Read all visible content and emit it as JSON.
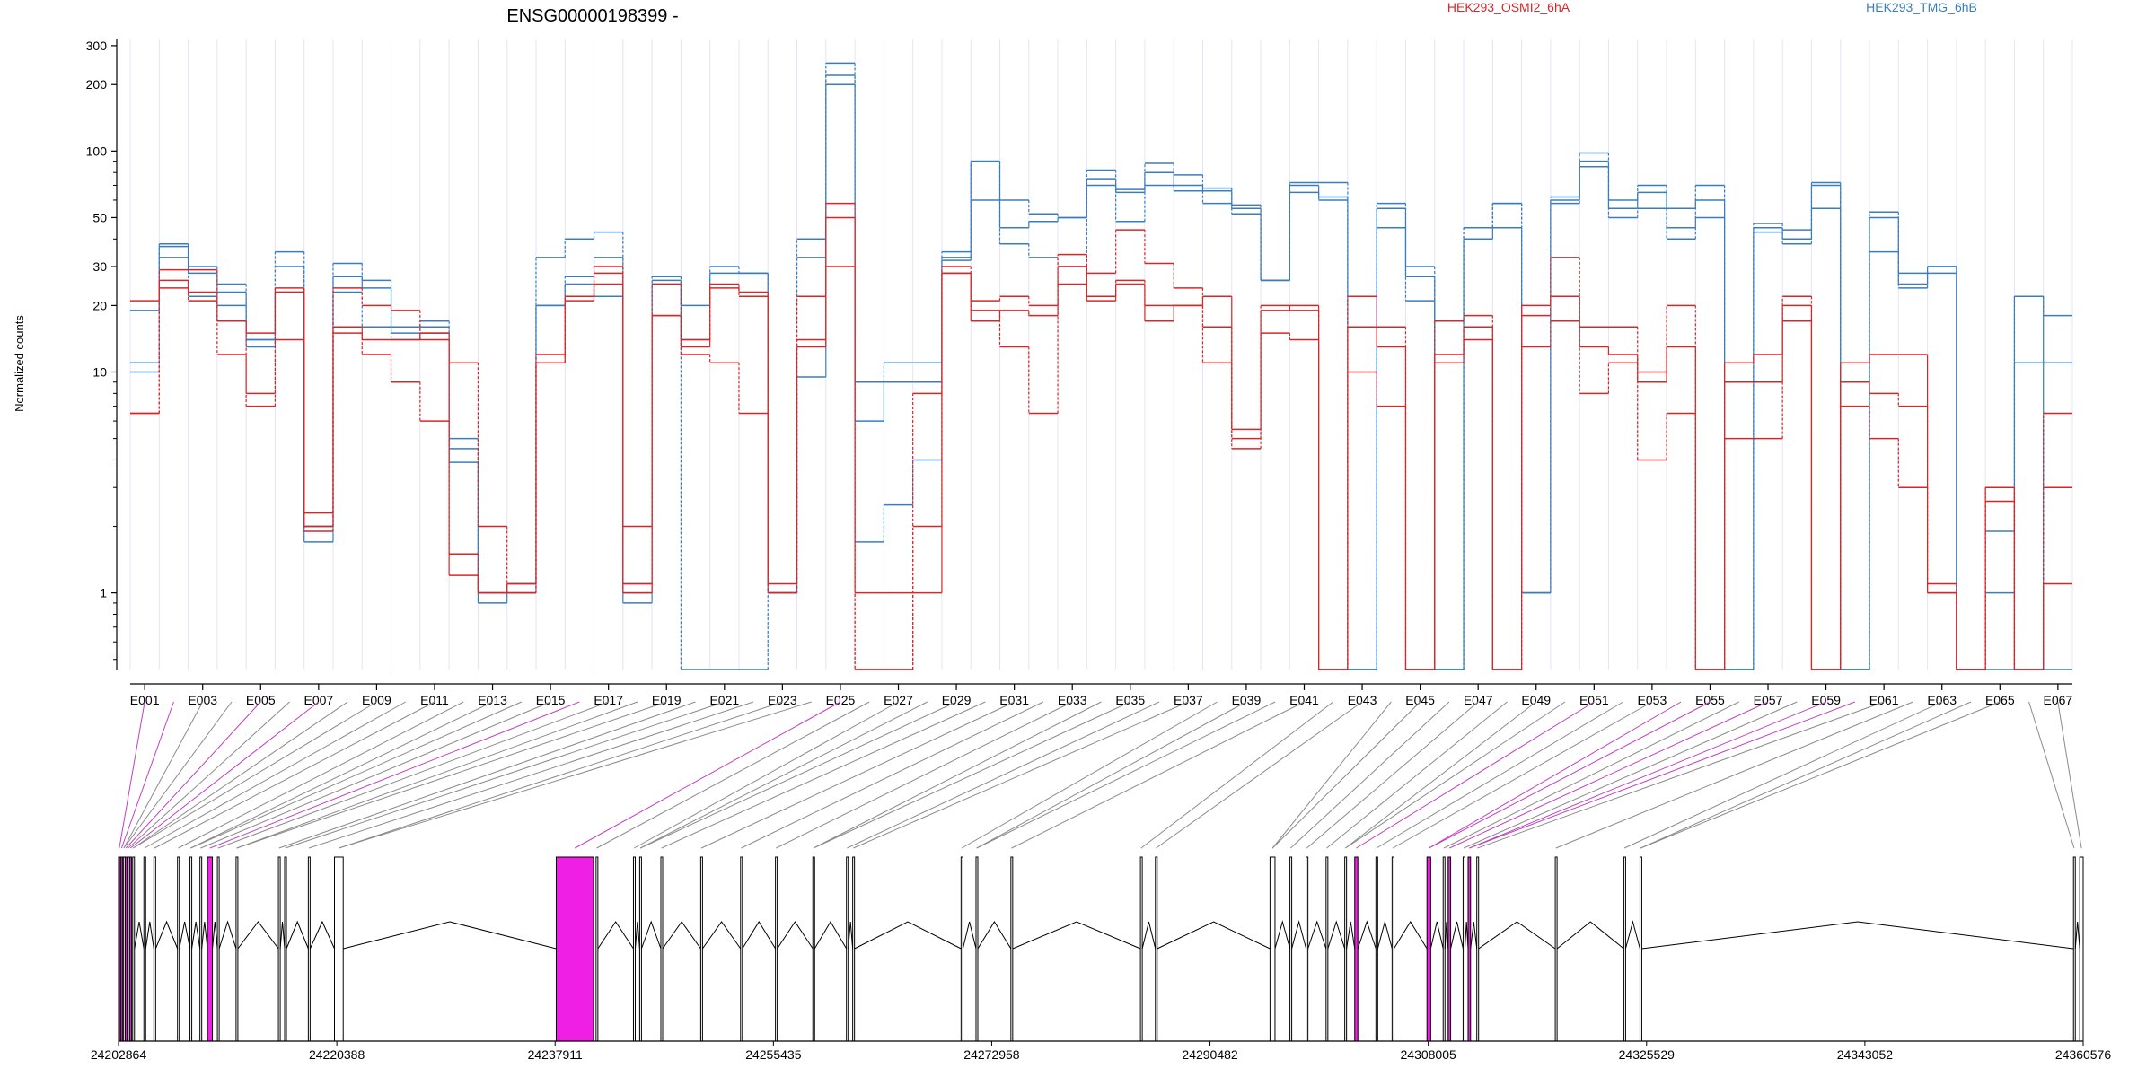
{
  "chart_data": {
    "type": "line",
    "title": "ENSG00000198399 -",
    "ylabel": "Normalized counts",
    "yscale": "log",
    "ylim": [
      0.45,
      320
    ],
    "yticks": [
      1,
      10,
      20,
      30,
      50,
      100,
      200,
      300
    ],
    "legend": [
      {
        "label": "HEK293_OSMI2_6hA",
        "color": "#d62728"
      },
      {
        "label": "HEK293_TMG_6hB",
        "color": "#3a7dbf"
      }
    ],
    "exons": [
      "E001",
      "E002",
      "E003",
      "E004",
      "E005",
      "E006",
      "E007",
      "E008",
      "E009",
      "E010",
      "E011",
      "E012",
      "E013",
      "E014",
      "E015",
      "E016",
      "E017",
      "E018",
      "E019",
      "E020",
      "E021",
      "E022",
      "E023",
      "E024",
      "E025",
      "E026",
      "E027",
      "E028",
      "E029",
      "E030",
      "E031",
      "E032",
      "E033",
      "E034",
      "E035",
      "E036",
      "E037",
      "E038",
      "E039",
      "E040",
      "E041",
      "E042",
      "E043",
      "E044",
      "E045",
      "E046",
      "E047",
      "E048",
      "E049",
      "E050",
      "E051",
      "E052",
      "E053",
      "E054",
      "E055",
      "E056",
      "E057",
      "E058",
      "E059",
      "E060",
      "E061",
      "E062",
      "E063",
      "E064",
      "E065",
      "E066",
      "E067"
    ],
    "exon_tick_labels": [
      "E001",
      "E003",
      "E005",
      "E007",
      "E009",
      "E011",
      "E013",
      "E015",
      "E017",
      "E019",
      "E021",
      "E023",
      "E025",
      "E027",
      "E029",
      "E031",
      "E033",
      "E035",
      "E037",
      "E039",
      "E041",
      "E043",
      "E045",
      "E047",
      "E049",
      "E051",
      "E053",
      "E055",
      "E057",
      "E059",
      "E061",
      "E063",
      "E065",
      "E067"
    ],
    "series": [
      {
        "name": "HEK293_TMG_6hB",
        "color": "#3a7dbf",
        "dashed": false,
        "values": [
          19,
          38,
          28,
          23,
          13,
          23,
          1.7,
          27,
          24,
          15,
          15,
          3.9,
          0.9,
          1.0,
          20,
          25,
          22,
          0.9,
          25,
          20,
          28,
          28,
          1.0,
          9.5,
          200,
          6,
          9,
          9,
          32,
          90,
          45,
          48,
          50,
          75,
          65,
          80,
          70,
          66,
          55,
          26,
          70,
          62,
          0.45,
          55,
          27,
          0.45,
          40,
          45,
          1.0,
          60,
          90,
          55,
          65,
          55,
          60,
          0.45,
          45,
          40,
          70,
          0.45,
          50,
          25,
          30,
          0.45,
          0.45,
          22,
          0.45
        ]
      },
      {
        "name": "HEK293_TMG_6hB",
        "color": "#3a7dbf",
        "dashed": true,
        "values": [
          11,
          37,
          30,
          25,
          14,
          35,
          2.0,
          31,
          26,
          16,
          17,
          5,
          1.0,
          1.1,
          33,
          40,
          43,
          1.1,
          27,
          14,
          30,
          28,
          1.0,
          40,
          250,
          1.7,
          2.5,
          4,
          35,
          90,
          38,
          33,
          30,
          82,
          67,
          88,
          78,
          68,
          57,
          26,
          72,
          72,
          0.45,
          58,
          30,
          0.45,
          45,
          58,
          1.0,
          62,
          98,
          60,
          70,
          45,
          70,
          0.45,
          47,
          44,
          72,
          0.45,
          53,
          28,
          30,
          0.45,
          1.9,
          22,
          18
        ]
      },
      {
        "name": "HEK293_TMG_6hB",
        "color": "#3a7dbf",
        "dashed": true,
        "values": [
          10,
          33,
          22,
          20,
          14,
          30,
          2.0,
          23,
          16,
          14,
          16,
          4.5,
          1.0,
          1.1,
          20,
          27,
          33,
          1.0,
          26,
          0.45,
          0.45,
          0.45,
          1.0,
          33,
          220,
          9,
          11,
          11,
          33,
          60,
          60,
          52,
          50,
          70,
          48,
          70,
          66,
          58,
          52,
          26,
          65,
          60,
          0.45,
          45,
          21,
          0.45,
          45,
          58,
          1.0,
          58,
          85,
          50,
          55,
          40,
          50,
          0.45,
          43,
          38,
          55,
          0.45,
          35,
          24,
          28,
          0.45,
          1.0,
          11,
          11
        ]
      },
      {
        "name": "HEK293_OSMI2_6hA",
        "color": "#d62728",
        "dashed": false,
        "values": [
          21,
          26,
          23,
          17,
          15,
          24,
          2.0,
          16,
          14,
          14,
          15,
          1.2,
          1.0,
          1.1,
          11,
          21,
          25,
          1.0,
          18,
          13,
          25,
          23,
          1.1,
          13,
          50,
          1.0,
          1.0,
          1.0,
          28,
          17,
          19,
          18,
          30,
          21,
          25,
          17,
          20,
          22,
          5.5,
          19,
          20,
          0.45,
          16,
          13,
          0.45,
          12,
          16,
          0.45,
          20,
          22,
          13,
          12,
          9,
          13,
          0.45,
          11,
          12,
          20,
          0.45,
          11,
          12,
          12,
          1.0,
          0.45,
          3.0,
          0.45,
          1.1
        ]
      },
      {
        "name": "HEK293_OSMI2_6hA",
        "color": "#d62728",
        "dashed": true,
        "values": [
          6.5,
          29,
          29,
          17,
          8,
          23,
          1.9,
          24,
          20,
          19,
          14,
          11,
          2.0,
          1.0,
          12,
          22,
          30,
          2.0,
          25,
          14,
          24,
          22,
          1.0,
          14,
          58,
          0.45,
          0.45,
          8,
          30,
          21,
          22,
          20,
          34,
          28,
          44,
          31,
          24,
          16,
          5,
          20,
          19,
          0.45,
          22,
          16,
          0.45,
          17,
          18,
          0.45,
          18,
          33,
          16,
          16,
          10,
          20,
          0.45,
          9,
          9,
          22,
          0.45,
          9,
          8,
          7,
          1.1,
          0.45,
          2.6,
          0.45,
          6.5
        ]
      },
      {
        "name": "HEK293_OSMI2_6hA",
        "color": "#d62728",
        "dashed": true,
        "values": [
          6.5,
          24,
          21,
          12,
          7,
          14,
          2.3,
          15,
          12,
          9,
          6,
          1.5,
          1.0,
          1.0,
          11,
          22,
          28,
          1.1,
          18,
          12,
          11,
          6.5,
          1.0,
          22,
          30,
          0.45,
          0.45,
          2.0,
          28,
          19,
          13,
          6.5,
          25,
          22,
          26,
          20,
          20,
          11,
          4.5,
          15,
          14,
          0.45,
          10,
          7,
          0.45,
          11,
          14,
          0.45,
          13,
          17,
          8,
          11,
          4,
          6.5,
          0.45,
          5,
          5,
          17,
          0.45,
          7,
          5,
          3,
          1.0,
          0.45,
          3.0,
          0.45,
          3.0
        ]
      }
    ],
    "genome_axis": {
      "ticks": [
        "24202864",
        "24220388",
        "24237911",
        "24255435",
        "24272958",
        "24290482",
        "24308005",
        "24325529",
        "24343052",
        "24360576"
      ],
      "start": 24202864,
      "end": 24360576,
      "exons": [
        {
          "start": 24202864,
          "end": 24202990,
          "highlight": true
        },
        {
          "start": 24203060,
          "end": 24203160,
          "highlight": true
        },
        {
          "start": 24203250,
          "end": 24203330,
          "highlight": false
        },
        {
          "start": 24203400,
          "end": 24203520,
          "highlight": true
        },
        {
          "start": 24203600,
          "end": 24203680,
          "highlight": false
        },
        {
          "start": 24203760,
          "end": 24203880,
          "highlight": true
        },
        {
          "start": 24204000,
          "end": 24204080,
          "highlight": false
        },
        {
          "start": 24204900,
          "end": 24204990,
          "highlight": false
        },
        {
          "start": 24205700,
          "end": 24205800,
          "highlight": false
        },
        {
          "start": 24207600,
          "end": 24207700,
          "highlight": false
        },
        {
          "start": 24208600,
          "end": 24208700,
          "highlight": false
        },
        {
          "start": 24209400,
          "end": 24209500,
          "highlight": false
        },
        {
          "start": 24210000,
          "end": 24210400,
          "highlight": true
        },
        {
          "start": 24210800,
          "end": 24210900,
          "highlight": false
        },
        {
          "start": 24212300,
          "end": 24212400,
          "highlight": false
        },
        {
          "start": 24215700,
          "end": 24215800,
          "highlight": false
        },
        {
          "start": 24216200,
          "end": 24216300,
          "highlight": false
        },
        {
          "start": 24218100,
          "end": 24218200,
          "highlight": false
        },
        {
          "start": 24220200,
          "end": 24220900,
          "highlight": false
        },
        {
          "start": 24238000,
          "end": 24241000,
          "highlight": true
        },
        {
          "start": 24241200,
          "end": 24241300,
          "highlight": false
        },
        {
          "start": 24244200,
          "end": 24244300,
          "highlight": false
        },
        {
          "start": 24244700,
          "end": 24244800,
          "highlight": false
        },
        {
          "start": 24246400,
          "end": 24246500,
          "highlight": false
        },
        {
          "start": 24249600,
          "end": 24249700,
          "highlight": false
        },
        {
          "start": 24252800,
          "end": 24252900,
          "highlight": false
        },
        {
          "start": 24255600,
          "end": 24255700,
          "highlight": false
        },
        {
          "start": 24258600,
          "end": 24258700,
          "highlight": false
        },
        {
          "start": 24261300,
          "end": 24261400,
          "highlight": false
        },
        {
          "start": 24261800,
          "end": 24261900,
          "highlight": false
        },
        {
          "start": 24270500,
          "end": 24270600,
          "highlight": false
        },
        {
          "start": 24271700,
          "end": 24271800,
          "highlight": false
        },
        {
          "start": 24274500,
          "end": 24274600,
          "highlight": false
        },
        {
          "start": 24284900,
          "end": 24285000,
          "highlight": false
        },
        {
          "start": 24286100,
          "end": 24286200,
          "highlight": false
        },
        {
          "start": 24295300,
          "end": 24295700,
          "highlight": false
        },
        {
          "start": 24296900,
          "end": 24297000,
          "highlight": false
        },
        {
          "start": 24298200,
          "end": 24298300,
          "highlight": false
        },
        {
          "start": 24299800,
          "end": 24299900,
          "highlight": false
        },
        {
          "start": 24301300,
          "end": 24301400,
          "highlight": false
        },
        {
          "start": 24302100,
          "end": 24302350,
          "highlight": true
        },
        {
          "start": 24303800,
          "end": 24303900,
          "highlight": false
        },
        {
          "start": 24305100,
          "end": 24305200,
          "highlight": false
        },
        {
          "start": 24307900,
          "end": 24308200,
          "highlight": true
        },
        {
          "start": 24309200,
          "end": 24309300,
          "highlight": false
        },
        {
          "start": 24309600,
          "end": 24309800,
          "highlight": true
        },
        {
          "start": 24310800,
          "end": 24310900,
          "highlight": false
        },
        {
          "start": 24311200,
          "end": 24311400,
          "highlight": true
        },
        {
          "start": 24311900,
          "end": 24312000,
          "highlight": false
        },
        {
          "start": 24318200,
          "end": 24318300,
          "highlight": false
        },
        {
          "start": 24323700,
          "end": 24323800,
          "highlight": false
        },
        {
          "start": 24325000,
          "end": 24325100,
          "highlight": false
        },
        {
          "start": 24359800,
          "end": 24359900,
          "highlight": false
        },
        {
          "start": 24360300,
          "end": 24360576,
          "highlight": false
        }
      ]
    }
  }
}
